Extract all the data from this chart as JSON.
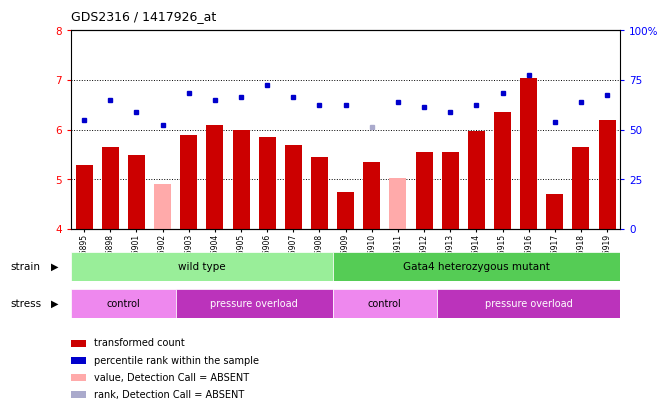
{
  "title": "GDS2316 / 1417926_at",
  "samples": [
    "GSM126895",
    "GSM126898",
    "GSM126901",
    "GSM126902",
    "GSM126903",
    "GSM126904",
    "GSM126905",
    "GSM126906",
    "GSM126907",
    "GSM126908",
    "GSM126909",
    "GSM126910",
    "GSM126911",
    "GSM126912",
    "GSM126913",
    "GSM126914",
    "GSM126915",
    "GSM126916",
    "GSM126917",
    "GSM126918",
    "GSM126919"
  ],
  "bar_values": [
    5.3,
    5.65,
    5.5,
    4.9,
    5.9,
    6.1,
    6.0,
    5.85,
    5.7,
    5.45,
    4.75,
    5.35,
    5.02,
    5.55,
    5.55,
    5.98,
    6.35,
    7.05,
    4.7,
    5.65,
    6.2
  ],
  "bar_absent": [
    false,
    false,
    false,
    true,
    false,
    false,
    false,
    false,
    false,
    false,
    false,
    false,
    true,
    false,
    false,
    false,
    false,
    false,
    false,
    false,
    false
  ],
  "rank_values": [
    6.2,
    6.6,
    6.35,
    6.1,
    6.75,
    6.6,
    6.65,
    6.9,
    6.65,
    6.5,
    6.5,
    6.05,
    6.55,
    6.45,
    6.35,
    6.5,
    6.75,
    7.1,
    6.15,
    6.55,
    6.7
  ],
  "rank_absent_idx": [
    11
  ],
  "ylim": [
    4.0,
    8.0
  ],
  "yticks": [
    4,
    5,
    6,
    7,
    8
  ],
  "bar_color": "#cc0000",
  "bar_absent_color": "#ffaaaa",
  "rank_color": "#0000cc",
  "rank_absent_color": "#aaaacc",
  "strain_wt_color": "#99ee99",
  "strain_mutant_color": "#55cc55",
  "stress_control_color": "#ee88ee",
  "stress_overload_color": "#bb33bb",
  "strain_wt_label": "wild type",
  "strain_mutant_label": "Gata4 heterozygous mutant",
  "stress_labels": [
    "control",
    "pressure overload",
    "control",
    "pressure overload"
  ],
  "wt_range": [
    0,
    9
  ],
  "mutant_range": [
    10,
    20
  ],
  "control1_range": [
    0,
    3
  ],
  "overload1_range": [
    4,
    9
  ],
  "control2_range": [
    10,
    13
  ],
  "overload2_range": [
    14,
    20
  ],
  "dotted_yticks": [
    5,
    6,
    7
  ]
}
